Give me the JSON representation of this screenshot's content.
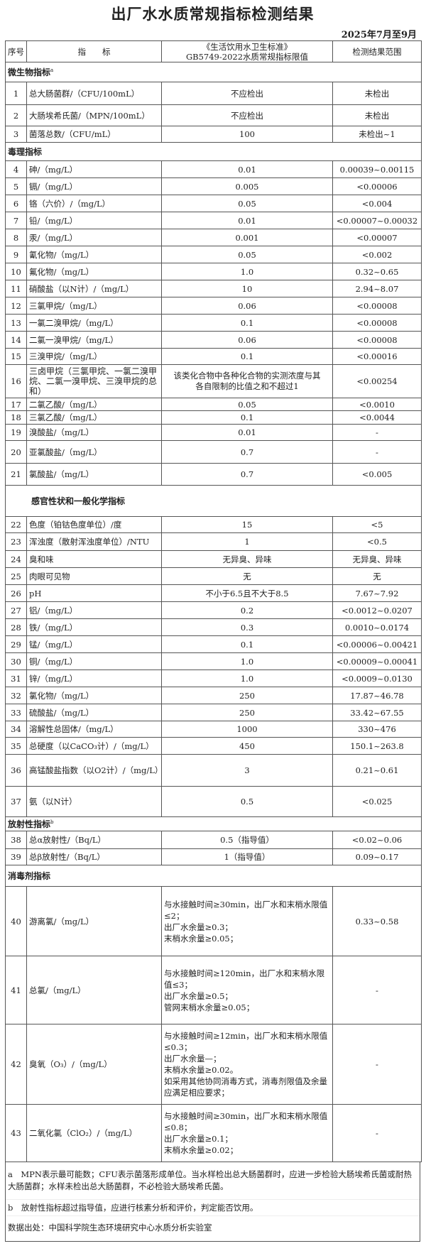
{
  "title": "出厂水水质常规指标检测结果",
  "period": "2025年7月至9月",
  "header": {
    "no": "序号",
    "indicator": "指　　标",
    "limit_line1": "《生活饮用水卫生标准》",
    "limit_line2": "GB5749-2022水质常规指标限值",
    "result": "检测结果范围"
  },
  "sections": [
    {
      "title": "微生物指标",
      "sup": "a",
      "rows": [
        {
          "no": "1",
          "name": "总大肠菌群/（CFU/100mL）",
          "limit": [
            "不应检出"
          ],
          "result": "未检出"
        },
        {
          "no": "2",
          "name": "大肠埃希氏菌/（MPN/100mL）",
          "limit": [
            "不应检出"
          ],
          "result": "未检出"
        },
        {
          "no": "3",
          "name": "菌落总数/（CFU/mL）",
          "limit": [
            "100"
          ],
          "result": "未检出~1"
        }
      ]
    },
    {
      "title": "毒理指标",
      "sup": "",
      "rows": [
        {
          "no": "4",
          "name": "砷/（mg/L）",
          "limit": [
            "0.01"
          ],
          "result": "0.00039~0.00115"
        },
        {
          "no": "5",
          "name": "镉/（mg/L）",
          "limit": [
            "0.005"
          ],
          "result": "<0.00006"
        },
        {
          "no": "6",
          "name": "铬（六价）/（mg/L）",
          "limit": [
            "0.05"
          ],
          "result": "<0.004"
        },
        {
          "no": "7",
          "name": "铅/（mg/L）",
          "limit": [
            "0.01"
          ],
          "result": "<0.00007~0.00032"
        },
        {
          "no": "8",
          "name": "汞/（mg/L）",
          "limit": [
            "0.001"
          ],
          "result": "<0.00007"
        },
        {
          "no": "9",
          "name": "氰化物/（mg/L）",
          "limit": [
            "0.05"
          ],
          "result": "<0.002"
        },
        {
          "no": "10",
          "name": "氟化物/（mg/L）",
          "limit": [
            "1.0"
          ],
          "result": "0.32~0.65"
        },
        {
          "no": "11",
          "name": "硝酸盐（以N计）/（mg/L）",
          "limit": [
            "10"
          ],
          "result": "2.94~8.07"
        },
        {
          "no": "12",
          "name": "三氯甲烷/（mg/L）",
          "limit": [
            "0.06"
          ],
          "result": "<0.00008"
        },
        {
          "no": "13",
          "name": "一氯二溴甲烷/（mg/L）",
          "limit": [
            "0.1"
          ],
          "result": "<0.00008"
        },
        {
          "no": "14",
          "name": "二氯一溴甲烷/（mg/L）",
          "limit": [
            "0.06"
          ],
          "result": "<0.00008"
        },
        {
          "no": "15",
          "name": "三溴甲烷/（mg/L）",
          "limit": [
            "0.1"
          ],
          "result": "<0.00016"
        },
        {
          "no": "16",
          "name": "三卤甲烷（三氯甲烷、一氯二溴甲烷、二氯一溴甲烷、三溴甲烷的总和）",
          "limit": [
            "该类化合物中各种化合物的实测浓度与其",
            "各自限制的比值之和不超过1"
          ],
          "result": "<0.00254"
        },
        {
          "no": "17",
          "name": "二氯乙酸/（mg/L）",
          "limit": [
            "0.05"
          ],
          "result": "<0.0010"
        },
        {
          "no": "18",
          "name": "三氯乙酸/（mg/L）",
          "limit": [
            "0.1"
          ],
          "result": "<0.0044"
        },
        {
          "no": "19",
          "name": "溴酸盐/（mg/L）",
          "limit": [
            "0.01"
          ],
          "result": "-"
        },
        {
          "no": "20",
          "name": "亚氯酸盐/（mg/L）",
          "limit": [
            "0.7"
          ],
          "result": "-"
        },
        {
          "no": "21",
          "name": "氯酸盐/（mg/L）",
          "limit": [
            "0.7"
          ],
          "result": "<0.005"
        }
      ]
    },
    {
      "title": "感官性状和一般化学指标",
      "sup": "",
      "rows": [
        {
          "no": "22",
          "name": "色度（铂钴色度单位）/度",
          "limit": [
            "15"
          ],
          "result": "<5"
        },
        {
          "no": "23",
          "name": "浑浊度（散射浑浊度单位）/NTU",
          "limit": [
            "1"
          ],
          "result": "<0.5"
        },
        {
          "no": "24",
          "name": "臭和味",
          "limit": [
            "无异臭、异味"
          ],
          "result": "无异臭、异味"
        },
        {
          "no": "25",
          "name": "肉眼可见物",
          "limit": [
            "无"
          ],
          "result": "无"
        },
        {
          "no": "26",
          "name": "pH",
          "limit": [
            "不小于6.5且不大于8.5"
          ],
          "result": "7.67~7.92"
        },
        {
          "no": "27",
          "name": "铝/（mg/L）",
          "limit": [
            "0.2"
          ],
          "result": "<0.0012~0.0207"
        },
        {
          "no": "28",
          "name": "铁/（mg/L）",
          "limit": [
            "0.3"
          ],
          "result": "0.0010~0.0174"
        },
        {
          "no": "29",
          "name": "锰/（mg/L）",
          "limit": [
            "0.1"
          ],
          "result": "<0.00006~0.00421"
        },
        {
          "no": "30",
          "name": "铜/（mg/L）",
          "limit": [
            "1.0"
          ],
          "result": "<0.00009~0.00041"
        },
        {
          "no": "31",
          "name": "锌/（mg/L）",
          "limit": [
            "1.0"
          ],
          "result": "<0.0009~0.0130"
        },
        {
          "no": "32",
          "name": "氯化物/（mg/L）",
          "limit": [
            "250"
          ],
          "result": "17.87~46.78"
        },
        {
          "no": "33",
          "name": "硫酸盐/（mg/L）",
          "limit": [
            "250"
          ],
          "result": "33.42~67.55"
        },
        {
          "no": "34",
          "name": "溶解性总固体/（mg/L）",
          "limit": [
            "1000"
          ],
          "result": "330~476"
        },
        {
          "no": "35",
          "name": "总硬度（以CaCO₃计）/（mg/L）",
          "limit": [
            "450"
          ],
          "result": "150.1~263.8"
        },
        {
          "no": "36",
          "name": "高锰酸盐指数（以O2计）/（mg/L）",
          "limit": [
            "3"
          ],
          "result": "0.21~0.61"
        },
        {
          "no": "37",
          "name": "氨（以N计）",
          "limit": [
            "0.5"
          ],
          "result": "<0.025"
        }
      ]
    },
    {
      "title": "放射性指标",
      "sup": "b",
      "rows": [
        {
          "no": "38",
          "name": "总α放射性/（Bq/L）",
          "limit": [
            "0.5（指导值）"
          ],
          "result": "<0.02~0.06"
        },
        {
          "no": "39",
          "name": "总β放射性/（Bq/L）",
          "limit": [
            "1（指导值）"
          ],
          "result": "0.09~0.17"
        }
      ]
    },
    {
      "title": "消毒剂指标",
      "sup": "",
      "rows": [
        {
          "no": "40",
          "name": "游离氯/（mg/L）",
          "limit": [
            "与水接触时间≥30min，出厂水和末梢水限值≤2；",
            "出厂水余量≥0.3；",
            "末梢水余量≥0.05；"
          ],
          "result": "0.33~0.58"
        },
        {
          "no": "41",
          "name": "总氯/（mg/L）",
          "limit": [
            "与水接触时间≥120min，出厂水和末梢水限值≤3；",
            "出厂水余量≥0.5；",
            "管网末梢水余量≥0.05；"
          ],
          "result": "-"
        },
        {
          "no": "42",
          "name": "臭氧（O₃）/（mg/L）",
          "limit": [
            "与水接触时间≥12min，出厂水和末梢水限值≤0.3；",
            "出厂水余量—；",
            "末梢水余量≥0.02。",
            "如采用其他协同消毒方式，消毒剂限值及余量应满足相应要求；"
          ],
          "result": "-"
        },
        {
          "no": "43",
          "name": "二氧化氯（ClO₂）/（mg/L）",
          "limit": [
            "与水接触时间≥30min，出厂水和末梢水限值≤0.8；",
            "出厂水余量≥0.1；",
            "末梢水余量≥0.02；"
          ],
          "result": "-"
        }
      ]
    }
  ],
  "notes": {
    "a": "a　MPN表示最可能数；CFU表示菌落形成单位。当水样检出总大肠菌群时，应进一步检验大肠埃希氏菌或耐热大肠菌群；水样未检出总大肠菌群，不必检验大肠埃希氏菌。",
    "b": "b　放射性指标超过指导值，应进行核素分析和评价，判定能否饮用。",
    "source": "数据出处：中国科学院生态环境研究中心水质分析实验室"
  },
  "colors": {
    "border": "#555555",
    "text": "#222222",
    "background": "#ffffff"
  }
}
